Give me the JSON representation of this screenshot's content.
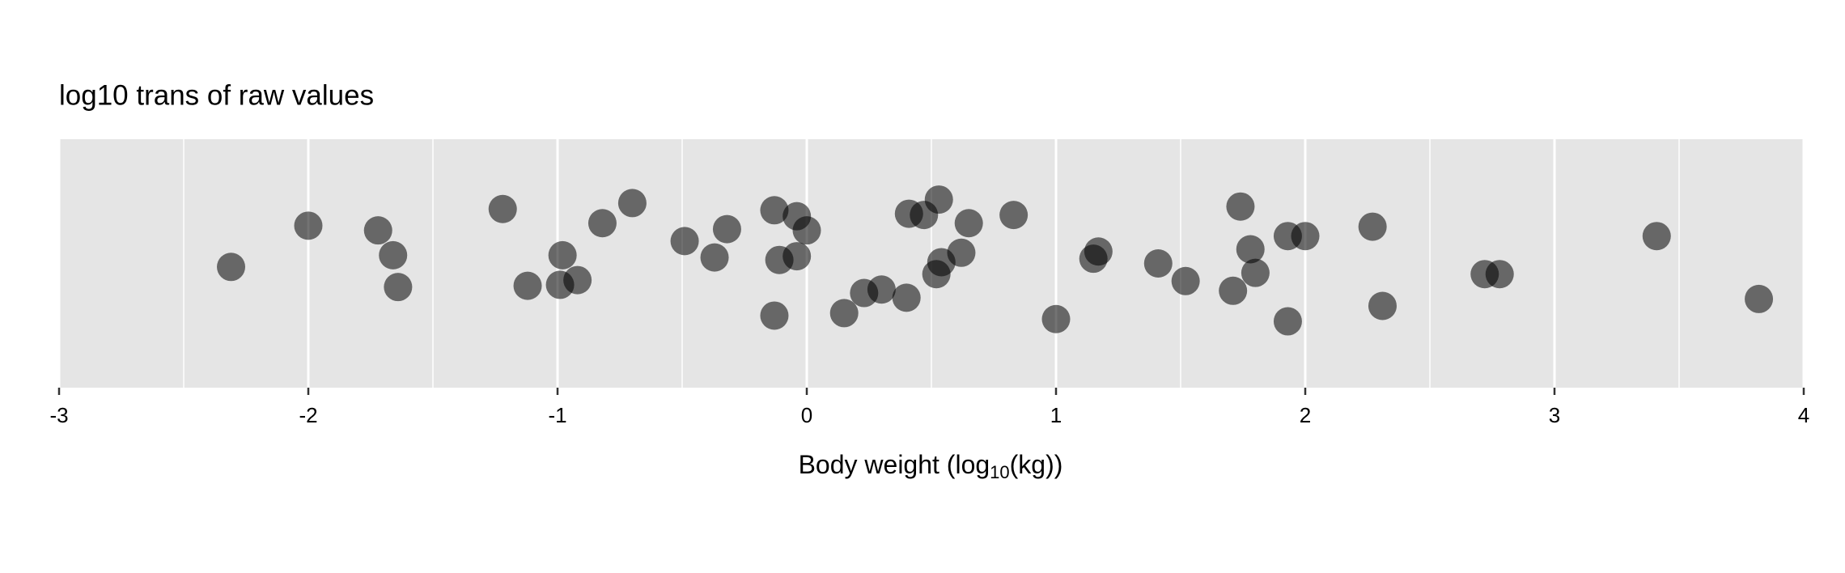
{
  "chart_data": {
    "type": "scatter",
    "title": "log10 trans of raw values",
    "x_label": [
      "Body weight (log",
      "10",
      "(kg))"
    ],
    "x": [
      -2.31,
      -2.0,
      -1.72,
      -1.66,
      -1.64,
      -1.22,
      -1.12,
      -0.98,
      -0.99,
      -0.92,
      -0.82,
      -0.7,
      -0.49,
      -0.37,
      -0.32,
      -0.13,
      -0.11,
      -0.13,
      -0.04,
      -0.04,
      0.0,
      0.15,
      0.23,
      0.3,
      0.4,
      0.41,
      0.47,
      0.53,
      0.52,
      0.54,
      0.62,
      0.65,
      0.83,
      1.0,
      1.15,
      1.17,
      1.41,
      1.52,
      1.71,
      1.74,
      1.78,
      1.8,
      1.93,
      1.93,
      2.0,
      2.27,
      2.31,
      2.72,
      2.78,
      3.41,
      3.82
    ],
    "y": [
      0.486,
      0.652,
      0.633,
      0.533,
      0.405,
      0.719,
      0.41,
      0.533,
      0.414,
      0.433,
      0.662,
      0.743,
      0.59,
      0.524,
      0.638,
      0.714,
      0.514,
      0.29,
      0.69,
      0.529,
      0.633,
      0.3,
      0.381,
      0.395,
      0.362,
      0.7,
      0.695,
      0.757,
      0.457,
      0.505,
      0.543,
      0.662,
      0.695,
      0.276,
      0.519,
      0.548,
      0.5,
      0.429,
      0.39,
      0.729,
      0.557,
      0.462,
      0.61,
      0.267,
      0.61,
      0.648,
      0.329,
      0.457,
      0.457,
      0.61,
      0.357
    ],
    "color": "#000000",
    "alpha": 0.55,
    "xlim": [
      -3,
      4
    ],
    "xticks": [
      -3,
      -2,
      -1,
      0,
      1,
      2,
      3,
      4
    ],
    "x_minor_grid": [
      -2.5,
      -1.5,
      -0.5,
      0.5,
      1.5,
      2.5,
      3.5
    ],
    "ylim": [
      0,
      1
    ],
    "grid": true
  }
}
